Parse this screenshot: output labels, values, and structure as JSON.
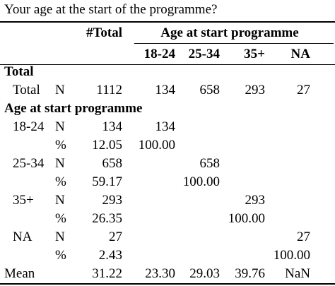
{
  "caption": "Your age at the start of the programme?",
  "header": {
    "total_col": "#Total",
    "group_label": "Age at start programme",
    "cols": [
      "18-24",
      "25-34",
      "35+",
      "NA"
    ]
  },
  "sections": {
    "total": {
      "title": "Total",
      "row": {
        "label": "Total",
        "stat": "N",
        "total": "1112",
        "v1": "134",
        "v2": "658",
        "v3": "293",
        "v4": "27"
      }
    },
    "age": {
      "title": "Age at start programme",
      "groups": [
        {
          "label": "18-24",
          "n": {
            "stat": "N",
            "total": "134",
            "v1": "134"
          },
          "pct": {
            "stat": "%",
            "total": "12.05",
            "v1": "100.00"
          }
        },
        {
          "label": "25-34",
          "n": {
            "stat": "N",
            "total": "658",
            "v2": "658"
          },
          "pct": {
            "stat": "%",
            "total": "59.17",
            "v2": "100.00"
          }
        },
        {
          "label": "35+",
          "n": {
            "stat": "N",
            "total": "293",
            "v3": "293"
          },
          "pct": {
            "stat": "%",
            "total": "26.35",
            "v3": "100.00"
          }
        },
        {
          "label": "NA",
          "n": {
            "stat": "N",
            "total": "27",
            "v4": "27"
          },
          "pct": {
            "stat": "%",
            "total": "2.43",
            "v4": "100.00"
          }
        }
      ]
    },
    "mean": {
      "label": "Mean",
      "total": "31.22",
      "v1": "23.30",
      "v2": "29.03",
      "v3": "39.76",
      "v4": "NaN"
    }
  }
}
